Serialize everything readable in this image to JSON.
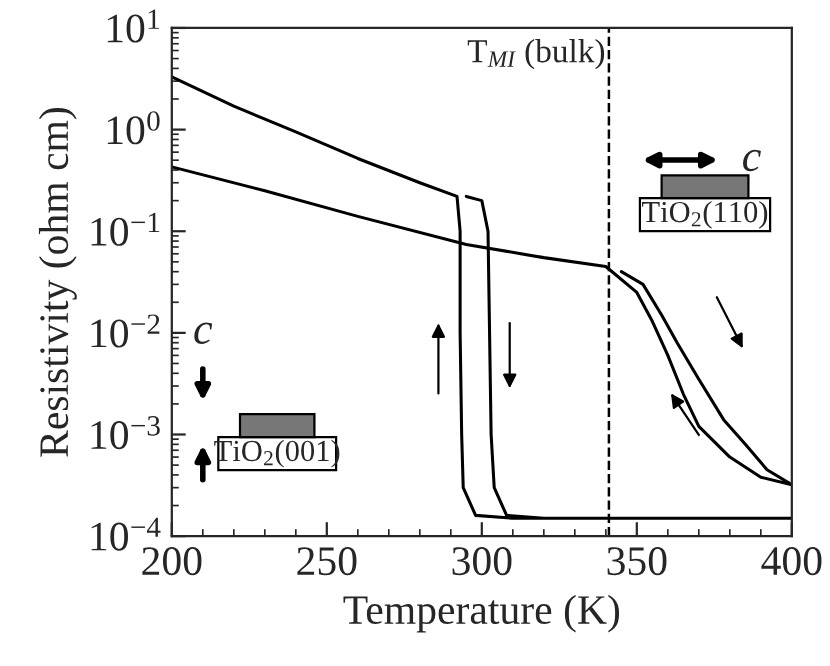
{
  "chart_data": {
    "type": "line",
    "xlabel": "Temperature (K)",
    "ylabel": "Resistivity (ohm cm)",
    "log": "y",
    "grid": false,
    "marker": "none",
    "line_style": "solid",
    "xlim": [
      200,
      400
    ],
    "xticks": [
      200,
      250,
      300,
      350,
      400
    ],
    "ylim": [
      0.0001,
      10
    ],
    "yticks": [
      {
        "value": 0.0001,
        "label": "10$^{−4}$"
      },
      {
        "value": 0.001,
        "label": "10$^{−3}$"
      },
      {
        "value": 0.01,
        "label": "10$^{−2}$"
      },
      {
        "value": 0.1,
        "label": "10$^{−1}$"
      },
      {
        "value": 1,
        "label": "10$^{0}$"
      },
      {
        "value": 10,
        "label": "10$^{1}$"
      }
    ],
    "series": [
      {
        "color": "#000000",
        "x": [
          200,
          220,
          240,
          260,
          280,
          292,
          293,
          293,
          293.5,
          294,
          298,
          310,
          400,
          320,
          308,
          304,
          303,
          302.5,
          302,
          300,
          295
        ],
        "values": [
          3.3,
          1.7,
          0.95,
          0.52,
          0.3,
          0.22,
          0.1,
          0.01,
          0.001,
          0.0003,
          0.00016,
          0.00015,
          0.00015,
          0.00015,
          0.00016,
          0.0003,
          0.001,
          0.01,
          0.1,
          0.2,
          0.22
        ]
      },
      {
        "color": "#000000",
        "x": [
          200,
          230,
          260,
          295,
          320,
          340,
          350,
          355,
          360,
          365,
          370,
          380,
          390,
          400,
          392,
          385,
          378,
          370,
          363,
          358,
          352,
          345
        ],
        "values": [
          0.43,
          0.25,
          0.14,
          0.074,
          0.055,
          0.045,
          0.025,
          0.013,
          0.006,
          0.0025,
          0.0012,
          0.0006,
          0.00038,
          0.00032,
          0.00045,
          0.0008,
          0.0014,
          0.0035,
          0.008,
          0.015,
          0.03,
          0.04
        ]
      }
    ],
    "ref_lines": [
      {
        "axis": "x",
        "value": 341,
        "label": "T$_{MI}$ (bulk)",
        "color": "#000000",
        "line_style": "dashed"
      }
    ],
    "annotations": [
      "c",
      "TiO$_{2}$(110)",
      "c",
      "TiO$_{2}$(001)"
    ]
  }
}
